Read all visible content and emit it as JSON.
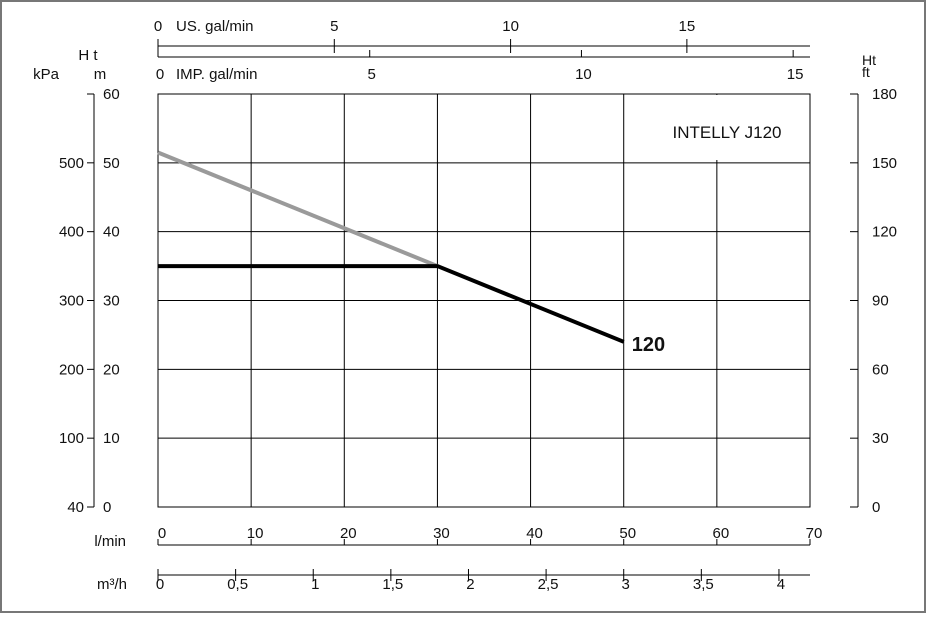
{
  "chart_data": {
    "type": "line",
    "model_label": "INTELLY J120",
    "curve_label": "120",
    "x": {
      "label": "l/min",
      "range": [
        0,
        70
      ],
      "ticks": [
        0,
        10,
        20,
        30,
        40,
        50,
        60,
        70
      ],
      "tick_labels": [
        "0",
        "10",
        "20",
        "30",
        "40",
        "50",
        "60",
        "70"
      ]
    },
    "x_m3h": {
      "label": "m³/h",
      "ticks": [
        0,
        0.5,
        1,
        1.5,
        2,
        2.5,
        3,
        3.5,
        4
      ],
      "tick_labels": [
        "0",
        "0,5",
        "1",
        "1,5",
        "2",
        "2,5",
        "3",
        "3,5",
        "4"
      ]
    },
    "x_us_gal": {
      "label": "US. gal/min",
      "ticks": [
        0,
        5,
        10,
        15
      ],
      "tick_labels": [
        "0",
        "5",
        "10",
        "15"
      ]
    },
    "x_imp_gal": {
      "label": "IMP. gal/min",
      "ticks": [
        0,
        5,
        10,
        15
      ],
      "tick_labels": [
        "0",
        "5",
        "10",
        "15"
      ]
    },
    "y_m": {
      "label": "m",
      "range": [
        0,
        60
      ],
      "ticks": [
        0,
        10,
        20,
        30,
        40,
        50,
        60
      ],
      "tick_labels": [
        "0",
        "10",
        "20",
        "30",
        "40",
        "50",
        "60"
      ]
    },
    "y_kpa": {
      "label": "kPa",
      "ticks": [
        0,
        10,
        20,
        30,
        40,
        50
      ],
      "tick_labels": [
        "40",
        "100",
        "200",
        "300",
        "400",
        "500"
      ]
    },
    "y_ft": {
      "label": "ft",
      "ticks": [
        0,
        30,
        60,
        90,
        120,
        150,
        180
      ],
      "tick_labels": [
        "0",
        "30",
        "60",
        "90",
        "120",
        "150",
        "180"
      ]
    },
    "left_header": "H t",
    "right_header": "Ht",
    "grid": true,
    "series": [
      {
        "color": "#9a9a9a",
        "x": [
          0,
          30
        ],
        "y": [
          51.5,
          35
        ]
      },
      {
        "color": "#000000",
        "x": [
          0,
          30,
          50
        ],
        "y": [
          35,
          35,
          24
        ]
      }
    ]
  }
}
